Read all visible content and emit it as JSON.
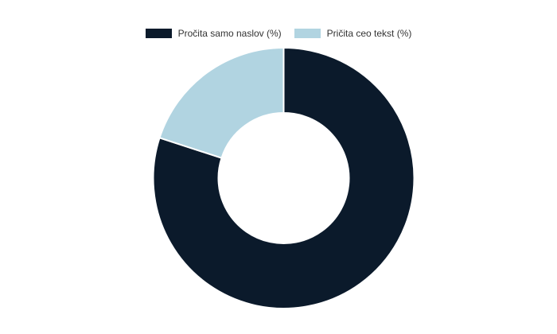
{
  "chart_data": {
    "type": "pie",
    "subtype": "donut",
    "title": "",
    "legend_position": "top-center",
    "background": "#ffffff",
    "inner_radius_pct": 50,
    "start_angle_deg": 0,
    "direction": "clockwise",
    "separator_color": "#ffffff",
    "separator_width": 2,
    "series": [
      {
        "label": "Pročita samo naslov (%)",
        "value": 80,
        "color": "#0b1a2b"
      },
      {
        "label": "Pričita ceo tekst (%)",
        "value": 20,
        "color": "#b1d4e1"
      }
    ]
  },
  "legend": {
    "text_color": "#333333"
  }
}
